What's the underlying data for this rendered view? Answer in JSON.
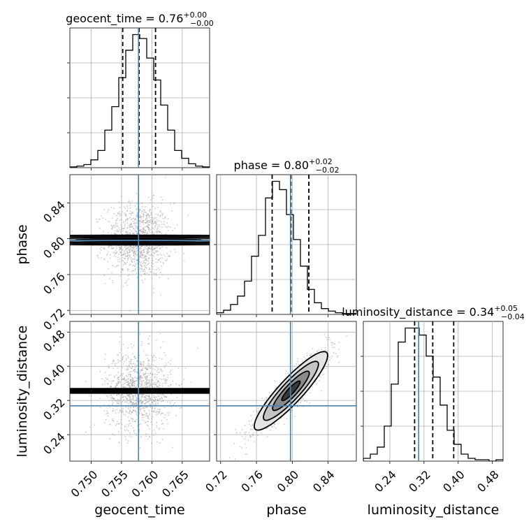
{
  "chart_data": {
    "type": "corner",
    "parameters": [
      "geocent_time",
      "phase",
      "luminosity_distance"
    ],
    "titles": [
      {
        "main": "geocent_time = 0.76",
        "plus": "+0.00",
        "minus": "−0.00"
      },
      {
        "main": "phase = 0.80",
        "plus": "+0.02",
        "minus": "−0.02"
      },
      {
        "main": "luminosity_distance = 0.34",
        "plus": "+0.05",
        "minus": "−0.04"
      }
    ],
    "ranges": [
      [
        0.7465,
        0.7695
      ],
      [
        0.7155,
        0.8715
      ],
      [
        0.178,
        0.505
      ]
    ],
    "ticks": [
      {
        "values": [
          0.75,
          0.755,
          0.76,
          0.765
        ],
        "labels": [
          "0.750",
          "0.755",
          "0.760",
          "0.765"
        ]
      },
      {
        "values": [
          0.72,
          0.76,
          0.8,
          0.84
        ],
        "labels": [
          "0.72",
          "0.76",
          "0.80",
          "0.84"
        ]
      },
      {
        "values": [
          0.24,
          0.32,
          0.4,
          0.48
        ],
        "labels": [
          "0.24",
          "0.32",
          "0.40",
          "0.48"
        ]
      }
    ],
    "truths": [
      0.7578,
      0.798,
      0.3075
    ],
    "quantiles": [
      [
        0.7552,
        0.7579,
        0.7606
      ],
      [
        0.7775,
        0.7985,
        0.8185
      ],
      [
        0.298,
        0.3405,
        0.3895
      ]
    ],
    "histograms": [
      {
        "x0": 0.7465,
        "dx": 0.00115,
        "values": [
          1,
          2,
          4,
          10,
          22,
          48,
          78,
          115,
          150,
          170,
          165,
          140,
          112,
          80,
          48,
          22,
          12,
          5,
          2,
          1
        ]
      },
      {
        "x0": 0.7155,
        "dx": 0.0078,
        "values": [
          2,
          5,
          12,
          22,
          40,
          70,
          95,
          140,
          160,
          150,
          120,
          90,
          58,
          30,
          14,
          7,
          4,
          2,
          1,
          1
        ]
      },
      {
        "x0": 0.178,
        "dx": 0.01635,
        "values": [
          2,
          5,
          10,
          25,
          55,
          85,
          95,
          95,
          90,
          75,
          60,
          40,
          22,
          12,
          5,
          2,
          1,
          1,
          0,
          1
        ]
      }
    ],
    "correlations": [
      [
        1,
        0,
        0
      ],
      [
        0,
        1,
        0.9
      ],
      [
        0,
        0.9,
        1
      ]
    ],
    "sigmas": [
      0.0027,
      0.0205,
      0.046
    ],
    "means": [
      0.7578,
      0.7985,
      0.3425
    ]
  }
}
